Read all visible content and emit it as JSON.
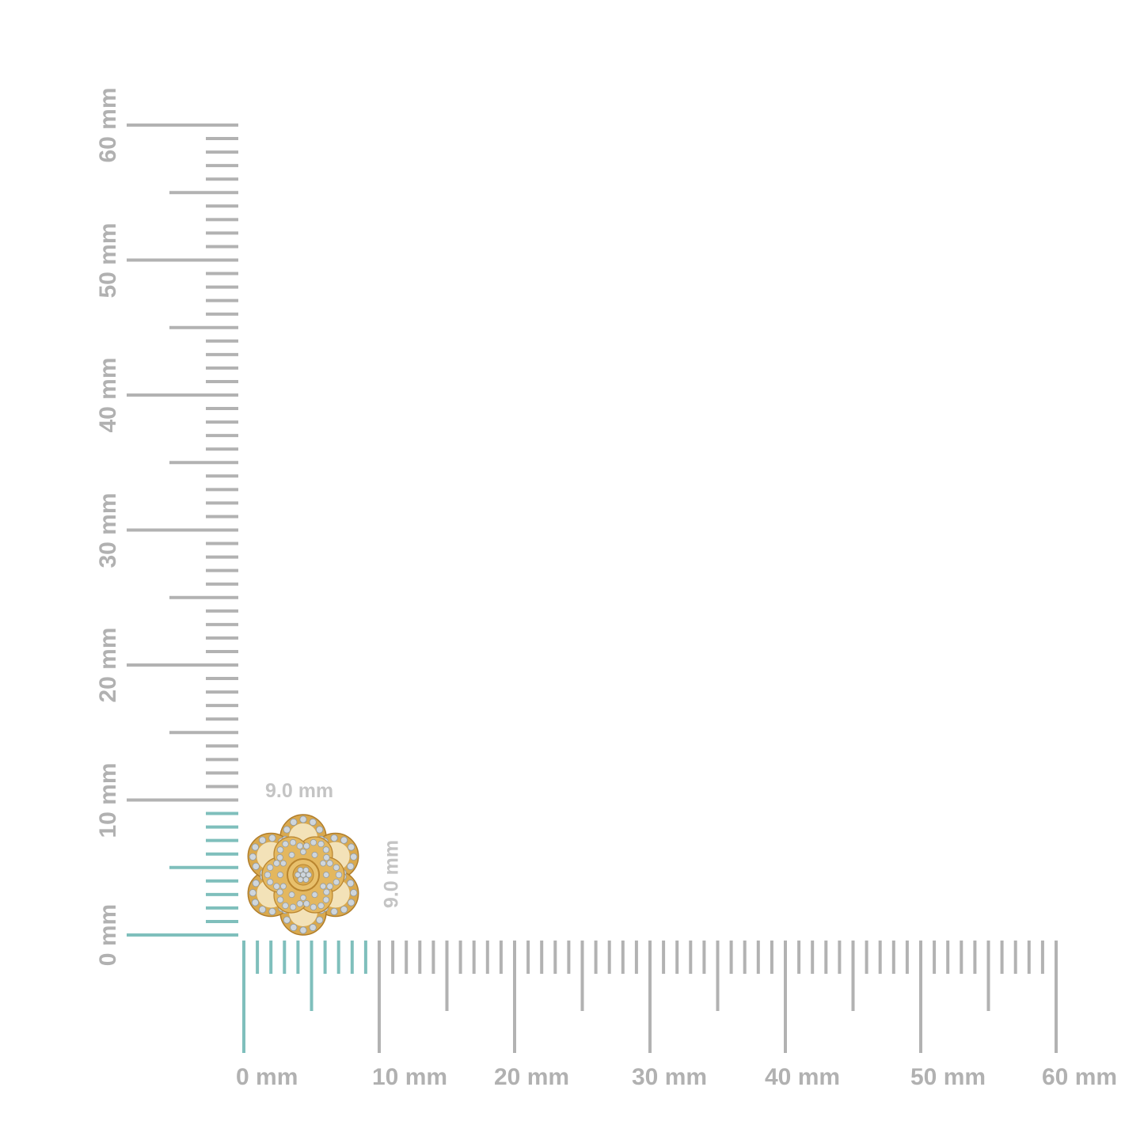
{
  "colors": {
    "ruler": "#b2b2b2",
    "highlight": "#7fbfbc",
    "gold": "#e0b45c",
    "diamond": "#cfd6dc"
  },
  "vertical_ruler": {
    "unit": "mm",
    "range_mm": [
      0,
      60
    ],
    "labels": [
      "0 mm",
      "10 mm",
      "20 mm",
      "30 mm",
      "40 mm",
      "50 mm",
      "60 mm"
    ],
    "highlighted_up_to_mm": 9
  },
  "horizontal_ruler": {
    "unit": "mm",
    "range_mm": [
      0,
      60
    ],
    "labels": [
      "0 mm",
      "10 mm",
      "20 mm",
      "30 mm",
      "40 mm",
      "50 mm",
      "60 mm"
    ],
    "highlighted_up_to_mm": 9
  },
  "product": {
    "name_icon": "flower-earring-image",
    "width_label": "9.0 mm",
    "height_label": "9.0 mm",
    "width_mm": 9.0,
    "height_mm": 9.0
  }
}
